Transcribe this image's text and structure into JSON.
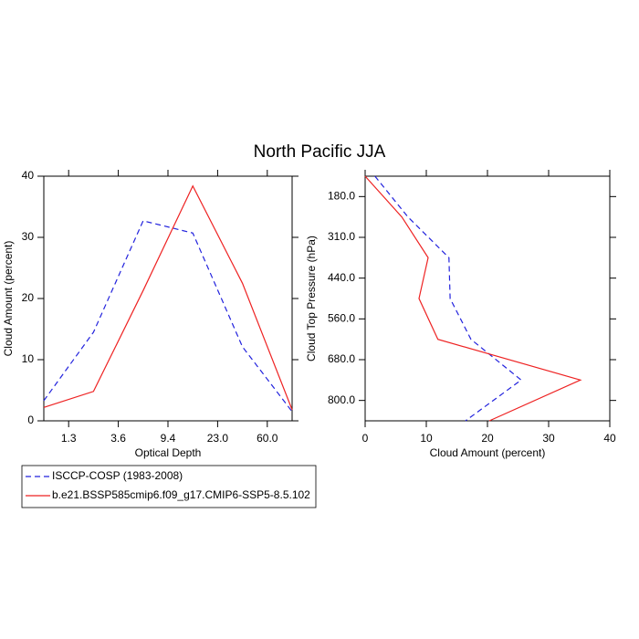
{
  "title": "North Pacific JJA",
  "chart_data": [
    {
      "type": "line",
      "orientation": "vertical",
      "xlabel": "Optical Depth",
      "ylabel": "Cloud Amount (percent)",
      "x": [
        0,
        1,
        2,
        3,
        4,
        5
      ],
      "xlim": [
        0,
        5
      ],
      "xticks": [
        {
          "value": 0.5,
          "label": "1.3"
        },
        {
          "value": 1.5,
          "label": "3.6"
        },
        {
          "value": 2.5,
          "label": "9.4"
        },
        {
          "value": 3.5,
          "label": "23.0"
        },
        {
          "value": 4.5,
          "label": "60.0"
        }
      ],
      "ylim": [
        0,
        40
      ],
      "yticks": [
        0,
        10,
        20,
        30,
        40
      ],
      "series": [
        {
          "name": "ISCCP-COSP (1983-2008)",
          "color": "#2222dd",
          "dashed": true,
          "values": [
            3.3,
            14.5,
            32.7,
            30.7,
            12.1,
            1.5
          ]
        },
        {
          "name": "b.e21.BSSP585cmip6.f09_g17.CMIP6-SSP5-8.5.102",
          "color": "#ee2222",
          "dashed": false,
          "values": [
            2.2,
            4.8,
            21.3,
            38.4,
            22.5,
            1.8
          ]
        }
      ]
    },
    {
      "type": "line",
      "orientation": "horizontal",
      "xlabel": "Cloud Amount (percent)",
      "ylabel": "Cloud Top Pressure (hPa)",
      "y": [
        0,
        1,
        2,
        3,
        4,
        5,
        6
      ],
      "ylim": [
        0,
        6
      ],
      "yreverse": true,
      "yticks": [
        {
          "value": 0.5,
          "label": "180.0"
        },
        {
          "value": 1.5,
          "label": "310.0"
        },
        {
          "value": 2.5,
          "label": "440.0"
        },
        {
          "value": 3.5,
          "label": "560.0"
        },
        {
          "value": 4.5,
          "label": "680.0"
        },
        {
          "value": 5.5,
          "label": "800.0"
        }
      ],
      "xlim": [
        0,
        40
      ],
      "xticks": [
        0,
        10,
        20,
        30,
        40
      ],
      "series": [
        {
          "color": "#2222dd",
          "dashed": true,
          "values": [
            1.6,
            7.0,
            13.7,
            13.9,
            17.3,
            25.5,
            16.4
          ]
        },
        {
          "color": "#ee2222",
          "dashed": false,
          "values": [
            0,
            6.0,
            10.3,
            8.8,
            11.9,
            35.2,
            20.3
          ]
        }
      ]
    }
  ]
}
